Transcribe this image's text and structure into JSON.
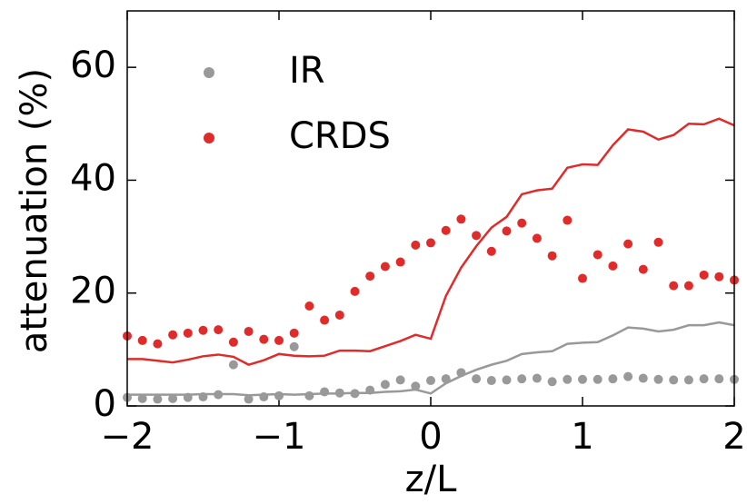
{
  "chart_data": {
    "type": "scatter",
    "xlabel": "z/L",
    "ylabel": "attenuation (%)",
    "x": [
      -2,
      -1.9,
      -1.8,
      -1.7,
      -1.6,
      -1.5,
      -1.4,
      -1.3,
      -1.2,
      -1.1,
      -1,
      -0.9,
      -0.8,
      -0.7,
      -0.6,
      -0.5,
      -0.4,
      -0.3,
      -0.2,
      -0.1,
      0,
      0.1,
      0.2,
      0.3,
      0.4,
      0.5,
      0.6,
      0.7,
      0.8,
      0.9,
      1,
      1.1,
      1.2,
      1.3,
      1.4,
      1.5,
      1.6,
      1.7,
      1.8,
      1.9,
      2
    ],
    "series": [
      {
        "name": "IR",
        "kind": "scatter",
        "color": "#999999",
        "values": [
          1.5,
          1.3,
          1.2,
          1.3,
          1.5,
          1.6,
          2,
          7.3,
          1.2,
          1.6,
          1.8,
          10.5,
          1.8,
          2.5,
          2.3,
          2.2,
          2.8,
          3.8,
          4.6,
          3.5,
          4.5,
          4.8,
          5.9,
          4.8,
          4.5,
          4.6,
          4.8,
          4.9,
          4.3,
          4.7,
          4.7,
          4.7,
          4.8,
          5.2,
          4.9,
          4.7,
          4.6,
          4.6,
          4.8,
          4.8,
          4.7
        ]
      },
      {
        "name": "CRDS",
        "kind": "scatter",
        "color": "#e02b2b",
        "values": [
          12.4,
          11.6,
          11,
          12.6,
          12.9,
          13.4,
          13.5,
          11.3,
          13.2,
          11.8,
          11.6,
          12.9,
          17.7,
          15.2,
          16.1,
          20.3,
          23,
          24.7,
          25.5,
          28.5,
          28.9,
          31.1,
          33.1,
          30.2,
          27.4,
          31,
          32.4,
          29.7,
          26.6,
          32.9,
          22.6,
          26.8,
          24.8,
          28.7,
          24.2,
          29,
          21.3,
          21.3,
          23.2,
          22.9,
          22.3
        ]
      },
      {
        "kind": "line",
        "color": "#999999",
        "values": [
          2,
          2,
          2,
          2,
          2,
          2.1,
          2.1,
          2.1,
          1.9,
          2,
          2.1,
          2,
          2.1,
          2.2,
          2.2,
          2.3,
          2.3,
          2.5,
          2.6,
          2.9,
          2.2,
          4,
          5.3,
          6.4,
          7.3,
          8,
          9.2,
          9.5,
          9.7,
          11,
          11.2,
          11.3,
          12.5,
          13.9,
          13.7,
          13.2,
          13.5,
          14.3,
          14.3,
          14.8,
          14.3
        ]
      },
      {
        "kind": "line",
        "color": "#e02b2b",
        "values": [
          8.3,
          8.3,
          8,
          7.7,
          8.2,
          8.8,
          9.1,
          8.7,
          7.3,
          8.1,
          9.2,
          8.9,
          8.8,
          8.9,
          9.8,
          9.8,
          9.7,
          10.6,
          11.5,
          12.6,
          11.9,
          19.5,
          24.5,
          28.3,
          31.6,
          33.5,
          37.5,
          38.2,
          38.5,
          42.2,
          42.8,
          42.7,
          46.2,
          49,
          48.6,
          47.2,
          48,
          50,
          49.9,
          50.9,
          49.7
        ]
      }
    ],
    "xlim": [
      -2,
      2
    ],
    "xticks": [
      {
        "value": -2,
        "label": "−2"
      },
      {
        "value": -1,
        "label": "−1"
      },
      0,
      1,
      2
    ],
    "ylim": [
      0,
      70
    ],
    "yticks": [
      0,
      20,
      40,
      60
    ],
    "legend": "upper left"
  }
}
